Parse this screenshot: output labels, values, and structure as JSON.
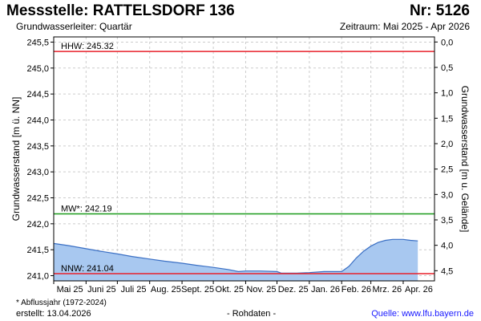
{
  "header": {
    "title": "Messstelle: RATTELSDORF 136",
    "number": "Nr: 5126",
    "aquifer": "Grundwasserleiter: Quartär",
    "period": "Zeitraum: Mai 2025 - Apr 2026"
  },
  "footer": {
    "footnote": "* Abflussjahr (1972-2024)",
    "created": "erstellt:  13.04.2026",
    "rawdata": "- Rohdaten -",
    "source": "Quelle:  www.lfu.bayern.de"
  },
  "chart_data": {
    "type": "area",
    "ylabel": "Grundwasserstand [m ü. NN]",
    "y2label": "Grundwasserstand [m u. Gelände]",
    "ylim": [
      240.9,
      245.6
    ],
    "y2lim": [
      4.7,
      -0.1
    ],
    "yticks": [
      {
        "v": 241.0,
        "label": "241,0"
      },
      {
        "v": 241.5,
        "label": "241,5"
      },
      {
        "v": 242.0,
        "label": "242,0"
      },
      {
        "v": 242.5,
        "label": "242,5"
      },
      {
        "v": 243.0,
        "label": "243,0"
      },
      {
        "v": 243.5,
        "label": "243,5"
      },
      {
        "v": 244.0,
        "label": "244,0"
      },
      {
        "v": 244.5,
        "label": "244,5"
      },
      {
        "v": 245.0,
        "label": "245,0"
      },
      {
        "v": 245.5,
        "label": "245,5"
      }
    ],
    "y2ticks": [
      {
        "v": 0.0,
        "label": "0,0"
      },
      {
        "v": 0.5,
        "label": "0,5"
      },
      {
        "v": 1.0,
        "label": "1,0"
      },
      {
        "v": 1.5,
        "label": "1,5"
      },
      {
        "v": 2.0,
        "label": "2,0"
      },
      {
        "v": 2.5,
        "label": "2,5"
      },
      {
        "v": 3.0,
        "label": "3,0"
      },
      {
        "v": 3.5,
        "label": "3,5"
      },
      {
        "v": 4.0,
        "label": "4,0"
      },
      {
        "v": 4.5,
        "label": "4,5"
      }
    ],
    "xlim": [
      "2025-05-01",
      "2026-04-30"
    ],
    "months": [
      {
        "label": "Mai 25",
        "start": "2025-05-01",
        "end": "2025-05-31"
      },
      {
        "label": "Juni 25",
        "start": "2025-06-01",
        "end": "2025-06-30"
      },
      {
        "label": "Juli 25",
        "start": "2025-07-01",
        "end": "2025-07-31"
      },
      {
        "label": "Aug. 25",
        "start": "2025-08-01",
        "end": "2025-08-31"
      },
      {
        "label": "Sept. 25",
        "start": "2025-09-01",
        "end": "2025-09-30"
      },
      {
        "label": "Okt. 25",
        "start": "2025-10-01",
        "end": "2025-10-31"
      },
      {
        "label": "Nov. 25",
        "start": "2025-11-01",
        "end": "2025-11-30"
      },
      {
        "label": "Dez. 25",
        "start": "2025-12-01",
        "end": "2025-12-31"
      },
      {
        "label": "Jan. 26",
        "start": "2026-01-01",
        "end": "2026-01-31"
      },
      {
        "label": "Feb. 26",
        "start": "2026-02-01",
        "end": "2026-02-28"
      },
      {
        "label": "Mrz. 26",
        "start": "2026-03-01",
        "end": "2026-03-31"
      },
      {
        "label": "Apr. 26",
        "start": "2026-04-01",
        "end": "2026-04-30"
      }
    ],
    "reference_lines": [
      {
        "label": "HHW: 245.32",
        "value": 245.32,
        "color": "#e8202a"
      },
      {
        "label": "MW*: 242.19",
        "value": 242.19,
        "color": "#1a9a1a"
      },
      {
        "label": "NNW: 241.04",
        "value": 241.04,
        "color": "#e8202a"
      }
    ],
    "series": [
      {
        "fill": "#a8c8f0",
        "stroke": "#3a6fc4",
        "points": [
          [
            "2025-05-01",
            241.62
          ],
          [
            "2025-05-15",
            241.58
          ],
          [
            "2025-06-01",
            241.52
          ],
          [
            "2025-06-15",
            241.47
          ],
          [
            "2025-07-01",
            241.42
          ],
          [
            "2025-07-15",
            241.37
          ],
          [
            "2025-08-01",
            241.32
          ],
          [
            "2025-08-15",
            241.28
          ],
          [
            "2025-09-01",
            241.24
          ],
          [
            "2025-09-15",
            241.2
          ],
          [
            "2025-10-01",
            241.16
          ],
          [
            "2025-10-15",
            241.12
          ],
          [
            "2025-10-25",
            241.08
          ],
          [
            "2025-11-01",
            241.09
          ],
          [
            "2025-11-15",
            241.09
          ],
          [
            "2025-12-01",
            241.08
          ],
          [
            "2025-12-05",
            241.05
          ],
          [
            "2025-12-20",
            241.05
          ],
          [
            "2026-01-01",
            241.06
          ],
          [
            "2026-01-15",
            241.08
          ],
          [
            "2026-02-01",
            241.08
          ],
          [
            "2026-02-08",
            241.18
          ],
          [
            "2026-02-15",
            241.34
          ],
          [
            "2026-02-22",
            241.47
          ],
          [
            "2026-03-01",
            241.57
          ],
          [
            "2026-03-08",
            241.64
          ],
          [
            "2026-03-15",
            241.68
          ],
          [
            "2026-03-22",
            241.7
          ],
          [
            "2026-04-01",
            241.7
          ],
          [
            "2026-04-08",
            241.68
          ],
          [
            "2026-04-15",
            241.67
          ]
        ]
      }
    ],
    "grid": true,
    "colors": {
      "axis": "#000000",
      "grid": "#cccccc"
    }
  }
}
